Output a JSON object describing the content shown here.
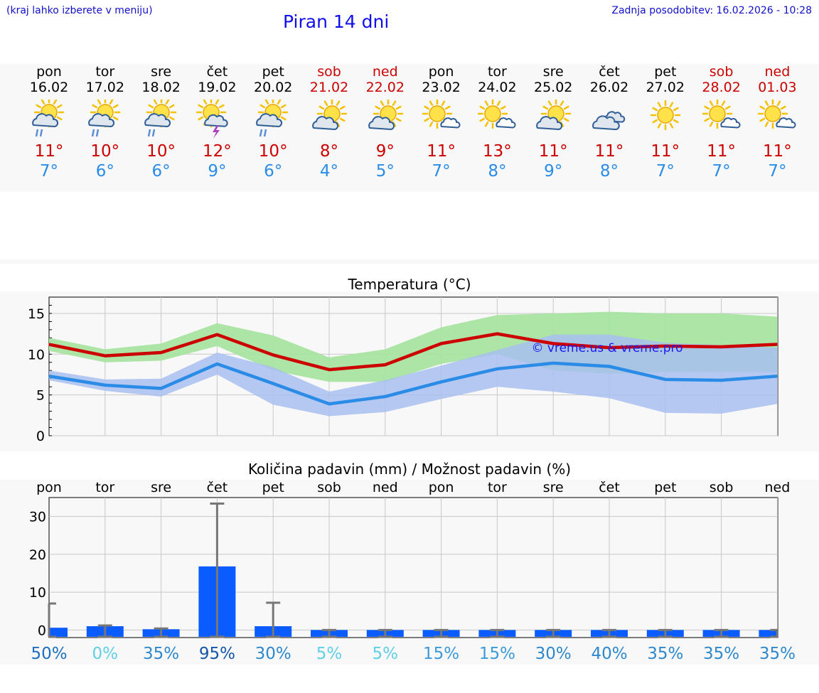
{
  "header": {
    "hint": "(kraj lahko izberete v meniju)",
    "title": "Piran 14 dni",
    "updated": "Zadnja posodobitev: 16.02.2026 - 10:28"
  },
  "days": [
    {
      "dow": "pon",
      "date": "16.02",
      "max": "11°",
      "min": "7°",
      "icon": "sun-cloud-rain-icon",
      "weekend": false
    },
    {
      "dow": "tor",
      "date": "17.02",
      "max": "10°",
      "min": "6°",
      "icon": "sun-cloud-rain-icon",
      "weekend": false
    },
    {
      "dow": "sre",
      "date": "18.02",
      "max": "10°",
      "min": "6°",
      "icon": "sun-cloud-rain-icon",
      "weekend": false
    },
    {
      "dow": "čet",
      "date": "19.02",
      "max": "12°",
      "min": "9°",
      "icon": "sun-cloud-thunder-icon",
      "weekend": false
    },
    {
      "dow": "pet",
      "date": "20.02",
      "max": "10°",
      "min": "6°",
      "icon": "sun-cloud-rain-icon",
      "weekend": false
    },
    {
      "dow": "sob",
      "date": "21.02",
      "max": "8°",
      "min": "4°",
      "icon": "sun-cloud-icon",
      "weekend": true
    },
    {
      "dow": "ned",
      "date": "22.02",
      "max": "9°",
      "min": "5°",
      "icon": "sun-cloud-icon",
      "weekend": true
    },
    {
      "dow": "pon",
      "date": "23.02",
      "max": "11°",
      "min": "7°",
      "icon": "sun-small-cloud-icon",
      "weekend": false
    },
    {
      "dow": "tor",
      "date": "24.02",
      "max": "13°",
      "min": "8°",
      "icon": "sun-small-cloud-icon",
      "weekend": false
    },
    {
      "dow": "sre",
      "date": "25.02",
      "max": "11°",
      "min": "9°",
      "icon": "sun-cloud-icon",
      "weekend": false
    },
    {
      "dow": "čet",
      "date": "26.02",
      "max": "11°",
      "min": "8°",
      "icon": "cloudy-icon",
      "weekend": false
    },
    {
      "dow": "pet",
      "date": "27.02",
      "max": "11°",
      "min": "7°",
      "icon": "sun-icon",
      "weekend": false
    },
    {
      "dow": "sob",
      "date": "28.02",
      "max": "11°",
      "min": "7°",
      "icon": "sun-small-cloud-icon",
      "weekend": true
    },
    {
      "dow": "ned",
      "date": "01.03",
      "max": "11°",
      "min": "7°",
      "icon": "sun-small-cloud-icon",
      "weekend": true
    }
  ],
  "colors": {
    "max": "#cc0000",
    "min": "#2a8ce6",
    "maxBand": "#a8e4a0",
    "minBand": "#a8c0f0",
    "bar": "#0a5cff",
    "err": "#777777"
  },
  "chart_data": [
    {
      "type": "line",
      "title": "Temperatura (°C)",
      "ylim": [
        0,
        17
      ],
      "yticks": [
        0,
        5,
        10,
        15
      ],
      "watermark": "© vreme.us & vreme.pro",
      "x": [
        0,
        1,
        2,
        3,
        4,
        5,
        6,
        7,
        8,
        9,
        10,
        11,
        12,
        13
      ],
      "series": [
        {
          "name": "max",
          "values": [
            11.2,
            9.8,
            10.2,
            12.4,
            9.9,
            8.1,
            8.7,
            11.3,
            12.5,
            11.3,
            10.8,
            11.0,
            10.9,
            11.2
          ],
          "band_low": [
            10.4,
            9.0,
            9.2,
            11.0,
            8.0,
            6.6,
            6.6,
            8.8,
            10.0,
            8.0,
            7.6,
            7.8,
            7.8,
            7.8
          ],
          "band_high": [
            12.0,
            10.6,
            11.3,
            13.8,
            12.3,
            9.6,
            10.6,
            13.3,
            14.8,
            15.0,
            15.2,
            15.0,
            15.0,
            14.6
          ]
        },
        {
          "name": "min",
          "values": [
            7.3,
            6.2,
            5.8,
            8.8,
            6.4,
            3.9,
            4.8,
            6.6,
            8.2,
            8.9,
            8.5,
            6.9,
            6.8,
            7.3
          ],
          "band_low": [
            6.8,
            5.5,
            4.8,
            7.5,
            3.8,
            2.4,
            2.9,
            4.5,
            6.0,
            5.4,
            4.6,
            2.8,
            2.7,
            3.9
          ],
          "band_high": [
            8.0,
            6.9,
            7.0,
            10.2,
            8.4,
            5.4,
            6.8,
            8.6,
            10.5,
            12.4,
            12.4,
            11.4,
            11.1,
            10.8
          ]
        }
      ]
    },
    {
      "type": "bar",
      "title": "Količina padavin (mm) / Možnost padavin (%)",
      "ylim": [
        -2,
        35
      ],
      "yticks": [
        0,
        10,
        20,
        30
      ],
      "categories": [
        "pon",
        "tor",
        "sre",
        "čet",
        "pet",
        "sob",
        "ned",
        "pon",
        "tor",
        "sre",
        "čet",
        "pet",
        "sob",
        "ned"
      ],
      "values": [
        0.6,
        1.0,
        0.2,
        16.8,
        1.0,
        0,
        0,
        0,
        0,
        0,
        0,
        0,
        0,
        0
      ],
      "err_high": [
        7.0,
        1.2,
        0.4,
        33.4,
        7.2,
        0,
        0,
        0,
        0,
        0,
        0,
        0,
        0,
        0
      ],
      "chance": [
        "50%",
        "0%",
        "35%",
        "95%",
        "30%",
        "5%",
        "5%",
        "15%",
        "15%",
        "30%",
        "40%",
        "35%",
        "35%",
        "35%"
      ],
      "chance_colors": [
        "#1f6fbf",
        "#5fd0e6",
        "#2f88cc",
        "#1656a8",
        "#2f88cc",
        "#5fd0e6",
        "#5fd0e6",
        "#3c9ad8",
        "#3c9ad8",
        "#2f88cc",
        "#2f88cc",
        "#2f88cc",
        "#2f88cc",
        "#2f88cc"
      ]
    }
  ]
}
